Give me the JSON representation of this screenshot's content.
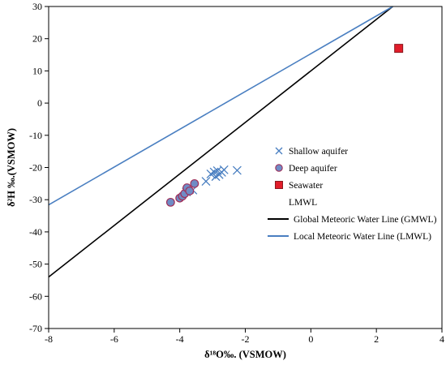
{
  "chart_data": {
    "type": "scatter",
    "xlabel": "δ¹⁸O‰. (VSMOW)",
    "ylabel": "δ²H ‰.(VSMOW)",
    "xlim": [
      -8,
      4
    ],
    "ylim": [
      -70,
      30
    ],
    "xticks": [
      -8,
      -6,
      -4,
      -2,
      0,
      2,
      4
    ],
    "yticks": [
      -70,
      -60,
      -50,
      -40,
      -30,
      -20,
      -10,
      0,
      10,
      20,
      30
    ],
    "grid": false,
    "legend_position": "center-right",
    "series": [
      {
        "name": "Shallow aquifer",
        "marker": "x",
        "color": "#4a7fc1",
        "points": [
          [
            -3.2,
            -24.3
          ],
          [
            -3.05,
            -22.0
          ],
          [
            -2.95,
            -21.4
          ],
          [
            -2.9,
            -22.8
          ],
          [
            -2.85,
            -21.0
          ],
          [
            -2.8,
            -22.2
          ],
          [
            -2.72,
            -21.5
          ],
          [
            -2.65,
            -20.7
          ],
          [
            -2.25,
            -20.9
          ],
          [
            -3.6,
            -27.0
          ],
          [
            -3.7,
            -26.8
          ],
          [
            -3.8,
            -27.6
          ]
        ]
      },
      {
        "name": "Deep aquifer",
        "marker": "circle",
        "color": "#6f8cc6",
        "stroke": "#a0305a",
        "points": [
          [
            -4.28,
            -30.8
          ],
          [
            -4.0,
            -29.5
          ],
          [
            -3.92,
            -28.9
          ],
          [
            -3.85,
            -28.1
          ],
          [
            -3.78,
            -26.3
          ],
          [
            -3.7,
            -27.3
          ],
          [
            -3.55,
            -25.0
          ]
        ]
      },
      {
        "name": "Seawater",
        "marker": "square",
        "color": "#e11d2a",
        "stroke": "#8a1a20",
        "points": [
          [
            2.68,
            17.0
          ]
        ]
      },
      {
        "name": "LMWL",
        "marker": "none",
        "points": []
      },
      {
        "name": "Global Meteoric Water Line (GMWL)",
        "marker": "line",
        "color": "#000000",
        "line": [
          [
            -8,
            -54.0
          ],
          [
            2.5,
            30.0
          ]
        ]
      },
      {
        "name": "Local Meteoric Water Line (LMWL)",
        "marker": "line",
        "color": "#4a7fc1",
        "line": [
          [
            -8,
            -31.6
          ],
          [
            2.5,
            30.0
          ]
        ]
      }
    ]
  }
}
